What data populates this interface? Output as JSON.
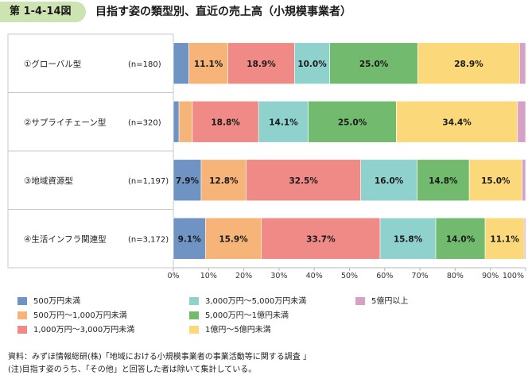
{
  "figure": {
    "number": "第 1-4-14図",
    "title": "目指す姿の類型別、直近の売上高（小規模事業者）"
  },
  "chart_data": {
    "type": "bar",
    "orientation": "horizontal",
    "stacked": true,
    "percent": true,
    "categories": [
      "①グローバル型",
      "②サプライチェーン型",
      "③地域資源型",
      "④生活インフラ関連型"
    ],
    "sample_sizes": [
      "(n=180)",
      "(n=320)",
      "(n=1,197)",
      "(n=3,172)"
    ],
    "series": [
      {
        "name": "500万円未満",
        "color": "#6f93c2",
        "values": [
          4.4,
          1.6,
          7.9,
          9.1
        ],
        "labels": [
          "",
          "",
          "7.9%",
          "9.1%"
        ]
      },
      {
        "name": "500万円～1,000万円未満",
        "color": "#f6b478",
        "values": [
          11.1,
          3.8,
          12.8,
          15.9
        ],
        "labels": [
          "11.1%",
          "",
          "12.8%",
          "15.9%"
        ]
      },
      {
        "name": "1,000万円～3,000万円未満",
        "color": "#ef8a86",
        "values": [
          18.9,
          18.8,
          32.5,
          33.7
        ],
        "labels": [
          "18.9%",
          "18.8%",
          "32.5%",
          "33.7%"
        ]
      },
      {
        "name": "3,000万円～5,000万円未満",
        "color": "#8fd1cd",
        "values": [
          10.0,
          14.1,
          16.0,
          15.8
        ],
        "labels": [
          "10.0%",
          "14.1%",
          "16.0%",
          "15.8%"
        ]
      },
      {
        "name": "5,000万円～1億円未満",
        "color": "#72bb6e",
        "values": [
          25.0,
          25.0,
          14.8,
          14.0
        ],
        "labels": [
          "25.0%",
          "25.0%",
          "14.8%",
          "14.0%"
        ]
      },
      {
        "name": "1億円～5億円未満",
        "color": "#fbd97a",
        "values": [
          28.9,
          34.4,
          15.0,
          11.1
        ],
        "labels": [
          "28.9%",
          "34.4%",
          "15.0%",
          "11.1%"
        ]
      },
      {
        "name": "5億円以上",
        "color": "#d7a1c7",
        "values": [
          1.7,
          2.3,
          1.0,
          0.4
        ],
        "labels": [
          "",
          "",
          "",
          ""
        ]
      }
    ],
    "xlim": [
      0,
      100
    ],
    "xticks": [
      "0%",
      "10%",
      "20%",
      "30%",
      "40%",
      "50%",
      "60%",
      "70%",
      "80%",
      "90%",
      "100%"
    ],
    "legend_position": "bottom",
    "grid": false
  },
  "legend": [
    {
      "label": "500万円未満",
      "color": "#6f93c2"
    },
    {
      "label": "3,000万円～5,000万円未満",
      "color": "#8fd1cd"
    },
    {
      "label": "5億円以上",
      "color": "#d7a1c7"
    },
    {
      "label": "500万円～1,000万円未満",
      "color": "#f6b478"
    },
    {
      "label": "5,000万円～1億円未満",
      "color": "#72bb6e"
    },
    {
      "label": "1,000万円～3,000万円未満",
      "color": "#ef8a86"
    },
    {
      "label": "1億円～5億円未満",
      "color": "#fbd97a"
    }
  ],
  "source": {
    "line1": "資料：みずほ情報総研(株)「地域における小規模事業者の事業活動等に関する調査 」",
    "line2": "(注)目指す姿のうち、「その他」と回答した者は除いて集計している。"
  }
}
